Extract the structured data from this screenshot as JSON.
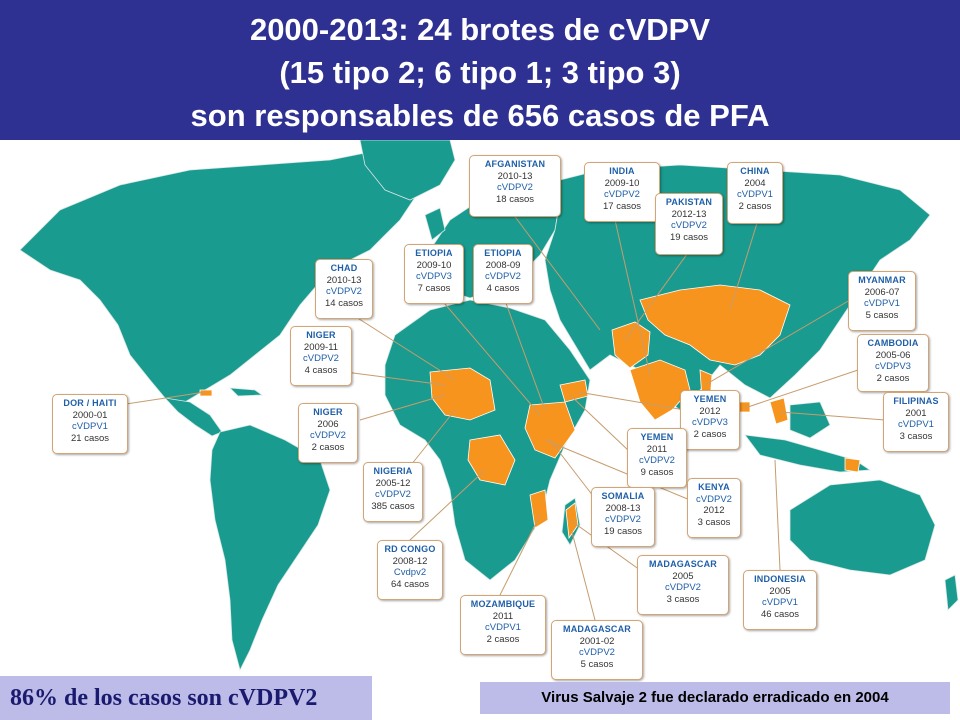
{
  "header": {
    "line1": "2000-2013: 24 brotes de cVDPV",
    "line2": "(15 tipo 2; 6 tipo 1; 3 tipo 3)",
    "line3": "son responsables de 656 casos de PFA"
  },
  "colors": {
    "header_bg": "#2e3192",
    "land": "#1a9b8f",
    "outbreak": "#f7941d",
    "ocean": "#ffffff",
    "callout_name": "#1f5fa8",
    "footer_bg": "#bdbbe8"
  },
  "callouts": [
    {
      "name": "AFGANISTAN",
      "years": "2010-13",
      "type": "cVDPV2",
      "cases": "18 casos"
    },
    {
      "name": "INDIA",
      "years": "2009-10",
      "type": "cVDPV2",
      "cases": "17 casos"
    },
    {
      "name": "CHINA",
      "years": "2004",
      "type": "cVDPV1",
      "cases": "2 casos"
    },
    {
      "name": "PAKISTAN",
      "years": "2012-13",
      "type": "cVDPV2",
      "cases": "19 casos"
    },
    {
      "name": "CHAD",
      "years": "2010-13",
      "type": "cVDPV2",
      "cases": "14 casos"
    },
    {
      "name": "ETIOPIA",
      "years": "2009-10",
      "type": "cVDPV3",
      "cases": "7 casos"
    },
    {
      "name": "ETIOPIA",
      "years": "2008-09",
      "type": "cVDPV2",
      "cases": "4 casos"
    },
    {
      "name": "MYANMAR",
      "years": "2006-07",
      "type": "cVDPV1",
      "cases": "5 casos"
    },
    {
      "name": "NIGER",
      "years": "2009-11",
      "type": "cVDPV2",
      "cases": "4 casos"
    },
    {
      "name": "CAMBODIA",
      "years": "2005-06",
      "type": "cVDPV3",
      "cases": "2 casos"
    },
    {
      "name": "DOR / HAITI",
      "years": "2000-01",
      "type": "cVDPV1",
      "cases": "21 casos"
    },
    {
      "name": "NIGER",
      "years": "2006",
      "type": "cVDPV2",
      "cases": "2 casos"
    },
    {
      "name": "YEMEN",
      "years": "2012",
      "type": "cVDPV3",
      "cases": "2 casos"
    },
    {
      "name": "FILIPINAS",
      "years": "2001",
      "type": "cVDPV1",
      "cases": "3 casos"
    },
    {
      "name": "YEMEN",
      "years": "2011",
      "type": "cVDPV2",
      "cases": "9 casos"
    },
    {
      "name": "NIGERIA",
      "years": "2005-12",
      "type": "cVDPV2",
      "cases": "385 casos"
    },
    {
      "name": "KENYA",
      "years": "cVDPV2",
      "type": "2012",
      "cases": "3 casos"
    },
    {
      "name": "SOMALIA",
      "years": "2008-13",
      "type": "cVDPV2",
      "cases": "19 casos"
    },
    {
      "name": "RD CONGO",
      "years": "2008-12",
      "type": "Cvdpv2",
      "cases": "64 casos"
    },
    {
      "name": "MADAGASCAR",
      "years": "2005",
      "type": "cVDPV2",
      "cases": "3 casos"
    },
    {
      "name": "INDONESIA",
      "years": "2005",
      "type": "cVDPV1",
      "cases": "46 casos"
    },
    {
      "name": "MOZAMBIQUE",
      "years": "2011",
      "type": "cVDPV1",
      "cases": "2 casos"
    },
    {
      "name": "MADAGASCAR",
      "years": "2001-02",
      "type": "cVDPV2",
      "cases": "5 casos"
    }
  ],
  "footer": {
    "left": "86% de los casos son cVDPV2",
    "right": "Virus Salvaje 2  fue declarado erradicado en 2004"
  }
}
